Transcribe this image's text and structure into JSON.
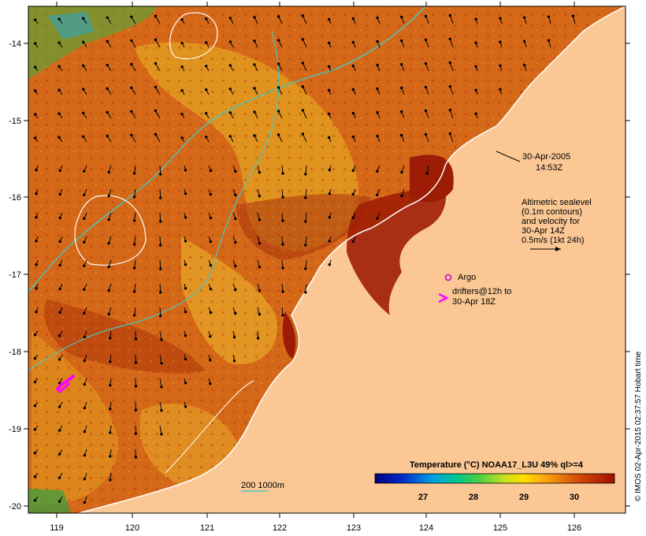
{
  "map": {
    "datetime_line1": "30-Apr-2005",
    "datetime_line2": "14:53Z",
    "altimetry_lines": [
      "Altimetric sealevel",
      "(0.1m contours)",
      "and velocity for",
      "30-Apr 14Z",
      "0.5m/s (1kt 24h)"
    ],
    "argo_label": "Argo",
    "drifters_line1": "drifters@12h to",
    "drifters_line2": "30-Apr 18Z",
    "depth_legend": "200  1000m",
    "colorbar_title": "Temperature (°C) NOAA17_L3U 49% ql>=4",
    "colorbar_ticks": [
      "27",
      "28",
      "29",
      "30"
    ],
    "credit": "© IMOS 02-Apr-2015 02:37:57 Hobart time",
    "lon_ticks": [
      "119",
      "120",
      "121",
      "122",
      "123",
      "124",
      "125",
      "126"
    ],
    "lat_ticks": [
      "-14",
      "-15",
      "-16",
      "-17",
      "-18",
      "-19",
      "-20"
    ],
    "colors": {
      "land": "#fbc895",
      "sst_warm": "#d05a10",
      "sst_hot": "#9a1c08",
      "sst_cool": "#e8a81a",
      "isobath": "#48c8c0",
      "contour": "#ffffff",
      "argo": "#cc00cc",
      "drifter": "#ff00ff"
    }
  }
}
